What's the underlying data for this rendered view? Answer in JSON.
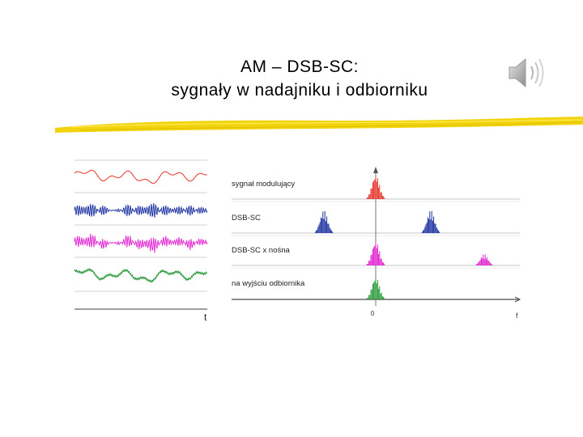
{
  "slide": {
    "title_line1": "AM – DSB-SC:",
    "title_line2": "sygnały w nadajniku i odbiorniku"
  },
  "icons": {
    "speaker": "speaker-sound-icon"
  },
  "figure": {
    "time_axis_label": "t",
    "freq_axis_label": "f",
    "freq_zero_label": "0",
    "rows": [
      {
        "label": "sygnał modulujący",
        "color": "#e8312a"
      },
      {
        "label": "DSB-SC",
        "color": "#1a2fa0"
      },
      {
        "label": "DSB-SC x nośna",
        "color": "#e020d0"
      },
      {
        "label": "na wyjściu odbiornika",
        "color": "#2a9a3a"
      }
    ]
  },
  "colors": {
    "underline": "#f2d40c",
    "background": "#ffffff"
  }
}
